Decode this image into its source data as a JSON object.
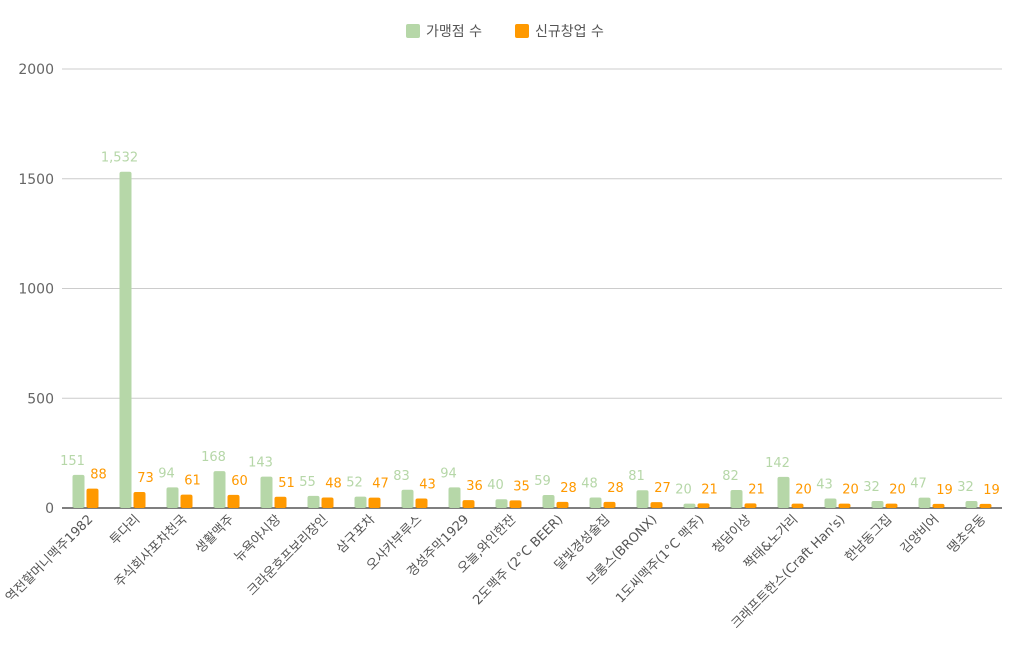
{
  "chart_data": {
    "type": "bar",
    "categories": [
      "역전할머니맥주1982",
      "투다리",
      "주식회사포차천국",
      "생활맥주",
      "뉴욕야시장",
      "크라운호프보리장인",
      "삼구포차",
      "오사카부루스",
      "경성주막1929",
      "오늘,와인한잔",
      "2도맥주 (2°C BEER)",
      "달빛경성술집",
      "브롱스(BRONX)",
      "1도씨맥주(1°C 맥주)",
      "청담이상",
      "짝태&노가리",
      "크래프트한스(Craft Han's)",
      "한남동그집",
      "김양비어",
      "땡초우동"
    ],
    "series": [
      {
        "name": "가맹점 수",
        "color": "#b6d7a8",
        "label_color": "#b6d7a8",
        "labels": [
          "151",
          "1,532",
          "94",
          "168",
          "143",
          "55",
          "52",
          "83",
          "94",
          "40",
          "59",
          "48",
          "81",
          "20",
          "82",
          "142",
          "43",
          "32",
          "47",
          "32"
        ],
        "values": [
          151,
          1532,
          94,
          168,
          143,
          55,
          52,
          83,
          94,
          40,
          59,
          48,
          81,
          20,
          82,
          142,
          43,
          32,
          47,
          32
        ]
      },
      {
        "name": "신규창업 수",
        "color": "#ff9900",
        "label_color": "#ff9900",
        "labels": [
          "88",
          "73",
          "61",
          "60",
          "51",
          "48",
          "47",
          "43",
          "36",
          "35",
          "28",
          "28",
          "27",
          "21",
          "21",
          "20",
          "20",
          "20",
          "19",
          "19"
        ],
        "values": [
          88,
          73,
          61,
          60,
          51,
          48,
          47,
          43,
          36,
          35,
          28,
          28,
          27,
          21,
          21,
          20,
          20,
          20,
          19,
          19
        ]
      }
    ],
    "y_ticks": [
      "0",
      "500",
      "1000",
      "1500",
      "2000"
    ],
    "ylim": [
      0,
      2000
    ],
    "grid": true,
    "legend_position": "top-center"
  }
}
